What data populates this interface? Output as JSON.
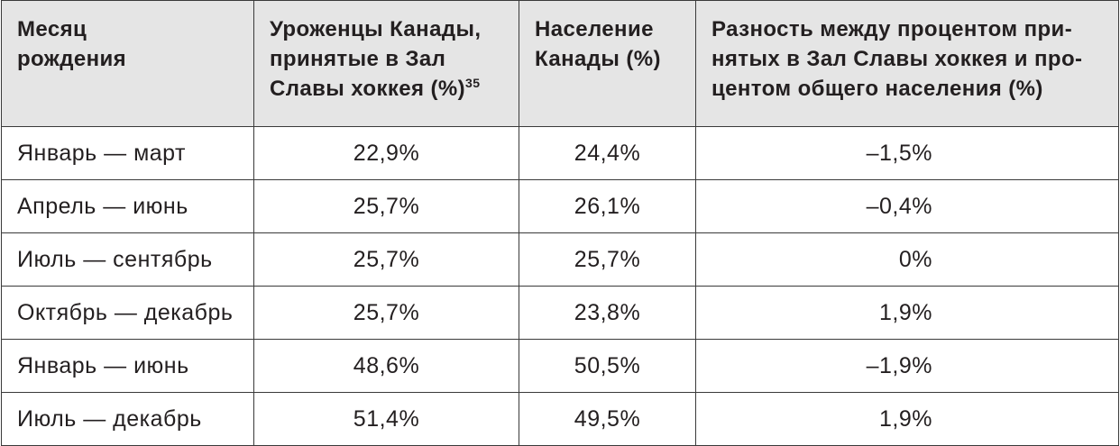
{
  "table": {
    "header": [
      {
        "lines": [
          "Месяц",
          "рождения"
        ]
      },
      {
        "lines": [
          "Уроженцы Канады,",
          "принятые в Зал",
          "Славы хоккея (%)"
        ],
        "footnote": "35"
      },
      {
        "lines": [
          "Население",
          "Канады (%)"
        ]
      },
      {
        "lines": [
          "Разность между процентом при-",
          "нятых в Зал Славы хоккея и про-",
          "центом общего населения (%)"
        ]
      }
    ],
    "rows": [
      [
        "Январь — март",
        "22,9%",
        "24,4%",
        "–1,5%"
      ],
      [
        "Апрель — июнь",
        "25,7%",
        "26,1%",
        "–0,4%"
      ],
      [
        "Июль — сентябрь",
        "25,7%",
        "25,7%",
        "0%"
      ],
      [
        "Октябрь — декабрь",
        "25,7%",
        "23,8%",
        "1,9%"
      ],
      [
        "Январь — июнь",
        "48,6%",
        "50,5%",
        "–1,9%"
      ],
      [
        "Июль — декабрь",
        "51,4%",
        "49,5%",
        "1,9%"
      ]
    ]
  }
}
